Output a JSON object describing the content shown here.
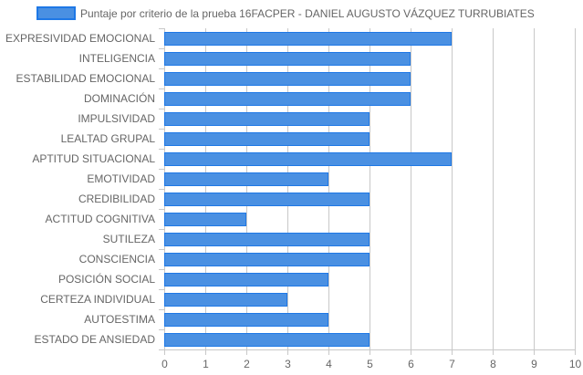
{
  "colors": {
    "bar_fill": "#4a90e2",
    "bar_stroke": "#1e78e6",
    "grid": "#c8c8c8",
    "axis_text": "#666666"
  },
  "chart_data": {
    "type": "bar",
    "orientation": "horizontal",
    "title": "",
    "xlabel": "",
    "ylabel": "",
    "xlim": [
      0,
      10
    ],
    "x_ticks": [
      0,
      1,
      2,
      3,
      4,
      5,
      6,
      7,
      8,
      9,
      10
    ],
    "grid": true,
    "legend_position": "top",
    "categories": [
      "EXPRESIVIDAD EMOCIONAL",
      "INTELIGENCIA",
      "ESTABILIDAD EMOCIONAL",
      "DOMINACIÓN",
      "IMPULSIVIDAD",
      "LEALTAD GRUPAL",
      "APTITUD SITUACIONAL",
      "EMOTIVIDAD",
      "CREDIBILIDAD",
      "ACTITUD COGNITIVA",
      "SUTILEZA",
      "CONSCIENCIA",
      "POSICIÓN SOCIAL",
      "CERTEZA INDIVIDUAL",
      "AUTOESTIMA",
      "ESTADO DE ANSIEDAD"
    ],
    "series": [
      {
        "name": "Puntaje por criterio de la prueba 16FACPER - DANIEL AUGUSTO VÁZQUEZ TURRUBIATES",
        "values": [
          7,
          6,
          6,
          6,
          5,
          5,
          7,
          4,
          5,
          2,
          5,
          5,
          4,
          3,
          4,
          5
        ]
      }
    ]
  }
}
